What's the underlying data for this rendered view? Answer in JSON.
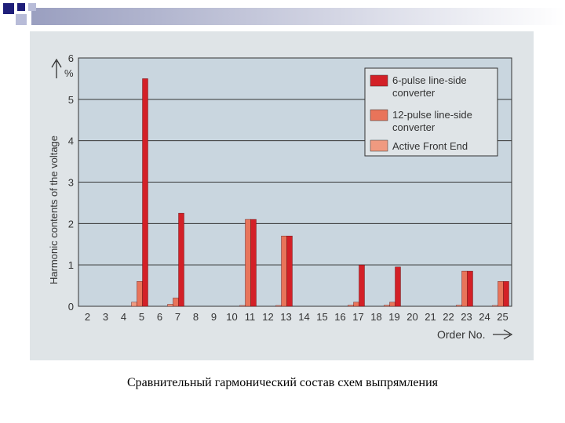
{
  "caption": "Сравнительный гармонический состав схем выпрямления",
  "colors": {
    "six_pulse": "#d32027",
    "twelve_pulse": "#e8745a",
    "afe": "#f09a80",
    "plot_bg": "#c9d6df",
    "panel_bg": "#dfe4e7",
    "deco_navy": "#1f1f7a"
  },
  "chart_data": {
    "type": "bar",
    "ylabel": "Harmonic contents of the voltage",
    "yunit": "%",
    "xlabel": "Order No.",
    "ylim": [
      0,
      6
    ],
    "yticks": [
      "0",
      "1",
      "2",
      "3",
      "4",
      "5",
      "6"
    ],
    "grid": true,
    "legend_position": "top-right",
    "categories": [
      "2",
      "3",
      "4",
      "5",
      "6",
      "7",
      "8",
      "9",
      "10",
      "11",
      "12",
      "13",
      "14",
      "15",
      "16",
      "17",
      "18",
      "19",
      "20",
      "21",
      "22",
      "23",
      "24",
      "25"
    ],
    "series": [
      {
        "name": "6-pulse line-side converter",
        "color": "#d32027",
        "values": [
          0,
          0,
          0,
          5.5,
          0,
          2.25,
          0,
          0,
          0,
          2.1,
          0,
          1.7,
          0,
          0,
          0,
          1.0,
          0,
          0.95,
          0,
          0,
          0,
          0.85,
          0,
          0.6
        ]
      },
      {
        "name": "12-pulse line-side converter",
        "color": "#e8745a",
        "values": [
          0,
          0,
          0,
          0.6,
          0,
          0.2,
          0,
          0,
          0,
          2.1,
          0,
          1.7,
          0,
          0,
          0,
          0.1,
          0,
          0.1,
          0,
          0,
          0,
          0.85,
          0,
          0.6
        ]
      },
      {
        "name": "Active Front End",
        "color": "#f09a80",
        "values": [
          0,
          0,
          0,
          0.1,
          0,
          0.05,
          0,
          0,
          0,
          0.02,
          0,
          0.02,
          0,
          0,
          0,
          0.03,
          0,
          0.03,
          0,
          0,
          0,
          0.03,
          0,
          0.02
        ]
      }
    ]
  }
}
